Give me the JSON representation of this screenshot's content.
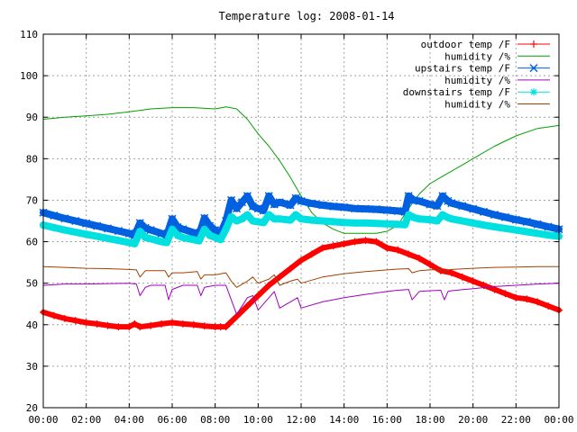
{
  "chart_data": {
    "type": "line",
    "title": "Temperature log: 2008-01-14",
    "xlabel": "",
    "ylabel": "",
    "xlim": [
      "00:00",
      "24:00"
    ],
    "ylim": [
      20,
      110
    ],
    "grid": true,
    "legend_position": "top-right",
    "x_ticks": [
      "00:00",
      "02:00",
      "04:00",
      "06:00",
      "08:00",
      "10:00",
      "12:00",
      "14:00",
      "16:00",
      "18:00",
      "20:00",
      "22:00",
      "00:00"
    ],
    "y_ticks": [
      "20",
      "30",
      "40",
      "50",
      "60",
      "70",
      "80",
      "90",
      "100",
      "110"
    ],
    "series": [
      {
        "name": "outdoor temp /F",
        "color": "#ff0000",
        "marker": "plus",
        "x": [
          "00:00",
          "00:30",
          "01:00",
          "01:30",
          "02:00",
          "02:30",
          "03:00",
          "03:30",
          "04:00",
          "04:15",
          "04:30",
          "05:00",
          "05:30",
          "06:00",
          "06:30",
          "07:00",
          "07:30",
          "08:00",
          "08:15",
          "08:30",
          "09:00",
          "09:30",
          "10:00",
          "10:30",
          "11:00",
          "11:30",
          "12:00",
          "12:30",
          "13:00",
          "13:30",
          "14:00",
          "14:30",
          "15:00",
          "15:30",
          "16:00",
          "16:30",
          "17:00",
          "17:30",
          "18:00",
          "18:30",
          "19:00",
          "19:30",
          "20:00",
          "20:30",
          "21:00",
          "21:30",
          "22:00",
          "22:30",
          "23:00",
          "23:30",
          "24:00"
        ],
        "y": [
          43,
          42.2,
          41.5,
          41,
          40.5,
          40.2,
          39.8,
          39.5,
          39.5,
          40.2,
          39.5,
          39.8,
          40.2,
          40.5,
          40.2,
          40,
          39.7,
          39.5,
          39.5,
          39.5,
          42,
          44.5,
          47,
          49.5,
          51.5,
          53.5,
          55.5,
          57,
          58.5,
          59,
          59.5,
          60,
          60.3,
          60,
          58.5,
          58,
          57,
          56,
          54.5,
          53,
          52.5,
          51.5,
          50.5,
          49.5,
          48.5,
          47.5,
          46.5,
          46.2,
          45.5,
          44.5,
          43.5
        ]
      },
      {
        "name": "humidity /%",
        "color": "#00a000",
        "marker": "none",
        "x": [
          "00:00",
          "01:00",
          "02:00",
          "03:00",
          "04:00",
          "05:00",
          "06:00",
          "07:00",
          "08:00",
          "08:30",
          "09:00",
          "09:30",
          "10:00",
          "10:30",
          "11:00",
          "11:30",
          "12:00",
          "12:30",
          "13:00",
          "13:30",
          "14:00",
          "14:30",
          "15:00",
          "15:30",
          "16:00",
          "16:30",
          "17:00",
          "17:30",
          "18:00",
          "18:30",
          "19:00",
          "19:30",
          "20:00",
          "21:00",
          "22:00",
          "23:00",
          "24:00"
        ],
        "y": [
          89.5,
          90,
          90.3,
          90.7,
          91.3,
          92,
          92.3,
          92.3,
          92,
          92.5,
          92,
          89.5,
          86,
          83,
          79.5,
          75.5,
          71,
          67,
          64.5,
          63,
          62,
          62,
          62,
          62,
          62.5,
          64,
          68,
          71.5,
          74,
          75.5,
          77,
          78.5,
          80,
          83,
          85.5,
          87.3,
          88
        ]
      },
      {
        "name": "upstairs temp /F",
        "color": "#0060e0",
        "marker": "cross",
        "x": [
          "00:00",
          "00:30",
          "01:00",
          "01:30",
          "02:00",
          "02:30",
          "03:00",
          "03:30",
          "04:00",
          "04:15",
          "04:30",
          "04:45",
          "05:00",
          "05:30",
          "05:45",
          "06:00",
          "06:15",
          "06:30",
          "07:00",
          "07:15",
          "07:30",
          "07:45",
          "08:00",
          "08:15",
          "08:30",
          "08:45",
          "09:00",
          "09:15",
          "09:30",
          "09:45",
          "10:00",
          "10:15",
          "10:30",
          "10:45",
          "11:00",
          "11:30",
          "11:45",
          "12:00",
          "12:30",
          "13:00",
          "13:30",
          "14:00",
          "14:30",
          "15:00",
          "15:30",
          "16:00",
          "16:30",
          "16:50",
          "17:00",
          "17:15",
          "17:30",
          "18:00",
          "18:20",
          "18:35",
          "18:50",
          "19:00",
          "19:30",
          "20:00",
          "20:30",
          "21:00",
          "21:30",
          "22:00",
          "22:30",
          "23:00",
          "23:30",
          "24:00"
        ],
        "y": [
          67,
          66.3,
          65.6,
          65,
          64.4,
          63.8,
          63.2,
          62.6,
          62,
          61.5,
          64.5,
          63.3,
          62.8,
          62,
          61.5,
          65.5,
          63.5,
          63,
          62.2,
          61.7,
          65.7,
          63.8,
          62.8,
          62,
          65,
          70,
          68,
          69.5,
          71,
          68.5,
          68,
          67.5,
          71,
          69,
          69.5,
          68.8,
          70.5,
          69.8,
          69.2,
          68.8,
          68.5,
          68.3,
          68,
          67.9,
          67.8,
          67.6,
          67.4,
          67.2,
          71,
          70,
          69.8,
          69,
          68.6,
          71,
          69.8,
          69.3,
          68.6,
          67.9,
          67.2,
          66.5,
          65.9,
          65.3,
          64.8,
          64.2,
          63.6,
          63
        ]
      },
      {
        "name": "humidity /%",
        "color": "#a000c0",
        "marker": "none",
        "x": [
          "00:00",
          "01:00",
          "02:00",
          "03:00",
          "04:00",
          "04:20",
          "04:30",
          "04:45",
          "05:00",
          "05:40",
          "05:50",
          "06:00",
          "06:30",
          "07:10",
          "07:20",
          "07:30",
          "08:00",
          "08:30",
          "08:45",
          "09:00",
          "09:30",
          "09:45",
          "10:00",
          "10:30",
          "10:45",
          "11:00",
          "11:30",
          "11:50",
          "12:00",
          "13:00",
          "14:00",
          "15:00",
          "16:00",
          "16:30",
          "17:00",
          "17:10",
          "17:30",
          "18:00",
          "18:30",
          "18:40",
          "18:50",
          "19:00",
          "20:00",
          "21:00",
          "22:00",
          "23:00",
          "24:00"
        ],
        "y": [
          49.5,
          49.8,
          49.8,
          49.9,
          50,
          49.8,
          47,
          49,
          49.5,
          49.5,
          46,
          48.5,
          49.5,
          49.5,
          47,
          49,
          49.5,
          49.5,
          46,
          42.5,
          46.5,
          47,
          43.5,
          46.5,
          48,
          44,
          45.5,
          46.5,
          44,
          45.5,
          46.5,
          47.3,
          48,
          48.3,
          48.5,
          46,
          48,
          48.2,
          48.3,
          46,
          48,
          48.2,
          48.7,
          49.2,
          49.5,
          49.8,
          50
        ]
      },
      {
        "name": "downstairs temp /F",
        "color": "#00e0e0",
        "marker": "star",
        "x": [
          "00:00",
          "00:30",
          "01:00",
          "01:30",
          "02:00",
          "02:30",
          "03:00",
          "03:30",
          "04:00",
          "04:15",
          "04:30",
          "04:45",
          "05:00",
          "05:30",
          "05:45",
          "06:00",
          "06:15",
          "06:30",
          "07:00",
          "07:15",
          "07:30",
          "07:45",
          "08:00",
          "08:15",
          "08:30",
          "08:45",
          "09:00",
          "09:15",
          "09:30",
          "09:45",
          "10:00",
          "10:15",
          "10:30",
          "10:45",
          "11:00",
          "11:30",
          "11:45",
          "12:00",
          "12:30",
          "13:00",
          "13:30",
          "14:00",
          "14:30",
          "15:00",
          "15:30",
          "16:00",
          "16:30",
          "16:50",
          "17:00",
          "17:15",
          "17:30",
          "18:00",
          "18:20",
          "18:35",
          "18:50",
          "19:00",
          "19:30",
          "20:00",
          "20:30",
          "21:00",
          "21:30",
          "22:00",
          "22:30",
          "23:00",
          "23:30",
          "24:00"
        ],
        "y": [
          64,
          63.4,
          62.8,
          62.3,
          61.8,
          61.3,
          60.8,
          60.3,
          59.8,
          59.5,
          62.5,
          61,
          60.7,
          60,
          59.8,
          63,
          61.5,
          61,
          60.5,
          60.2,
          63,
          61.5,
          61,
          60.5,
          63,
          66,
          65,
          65.5,
          66.5,
          65,
          64.8,
          64.6,
          66.5,
          65.5,
          65.5,
          65.2,
          66.5,
          65.5,
          65.2,
          65,
          64.8,
          64.6,
          64.5,
          64.5,
          64.4,
          64.3,
          64.2,
          64.1,
          66.5,
          65.8,
          65.5,
          65.3,
          65,
          66.5,
          65.8,
          65.5,
          65,
          64.5,
          64,
          63.6,
          63.2,
          62.8,
          62.4,
          62,
          61.6,
          61.3
        ]
      },
      {
        "name": "humidity /%",
        "color": "#a04000",
        "marker": "none",
        "x": [
          "00:00",
          "01:00",
          "02:00",
          "03:00",
          "04:00",
          "04:20",
          "04:30",
          "04:45",
          "05:00",
          "05:40",
          "05:50",
          "06:00",
          "06:30",
          "07:10",
          "07:20",
          "07:30",
          "08:00",
          "08:30",
          "08:45",
          "09:00",
          "09:30",
          "09:45",
          "10:00",
          "10:30",
          "10:45",
          "11:00",
          "11:30",
          "11:50",
          "12:00",
          "13:00",
          "14:00",
          "15:00",
          "16:00",
          "16:30",
          "17:00",
          "17:10",
          "17:30",
          "18:00",
          "18:30",
          "18:40",
          "18:50",
          "19:00",
          "20:00",
          "21:00",
          "22:00",
          "23:00",
          "24:00"
        ],
        "y": [
          54,
          53.8,
          53.6,
          53.5,
          53.3,
          53.2,
          51.5,
          53,
          53,
          53,
          51.5,
          52.5,
          52.5,
          52.8,
          51,
          52,
          52,
          52.5,
          50.5,
          49,
          50.5,
          51.5,
          50,
          51,
          52,
          49.5,
          50.5,
          51,
          50,
          51.5,
          52.3,
          52.8,
          53.2,
          53.4,
          53.5,
          52.5,
          53,
          53.2,
          53.3,
          52.5,
          53.2,
          53.3,
          53.6,
          53.8,
          53.9,
          54,
          54
        ]
      }
    ]
  }
}
